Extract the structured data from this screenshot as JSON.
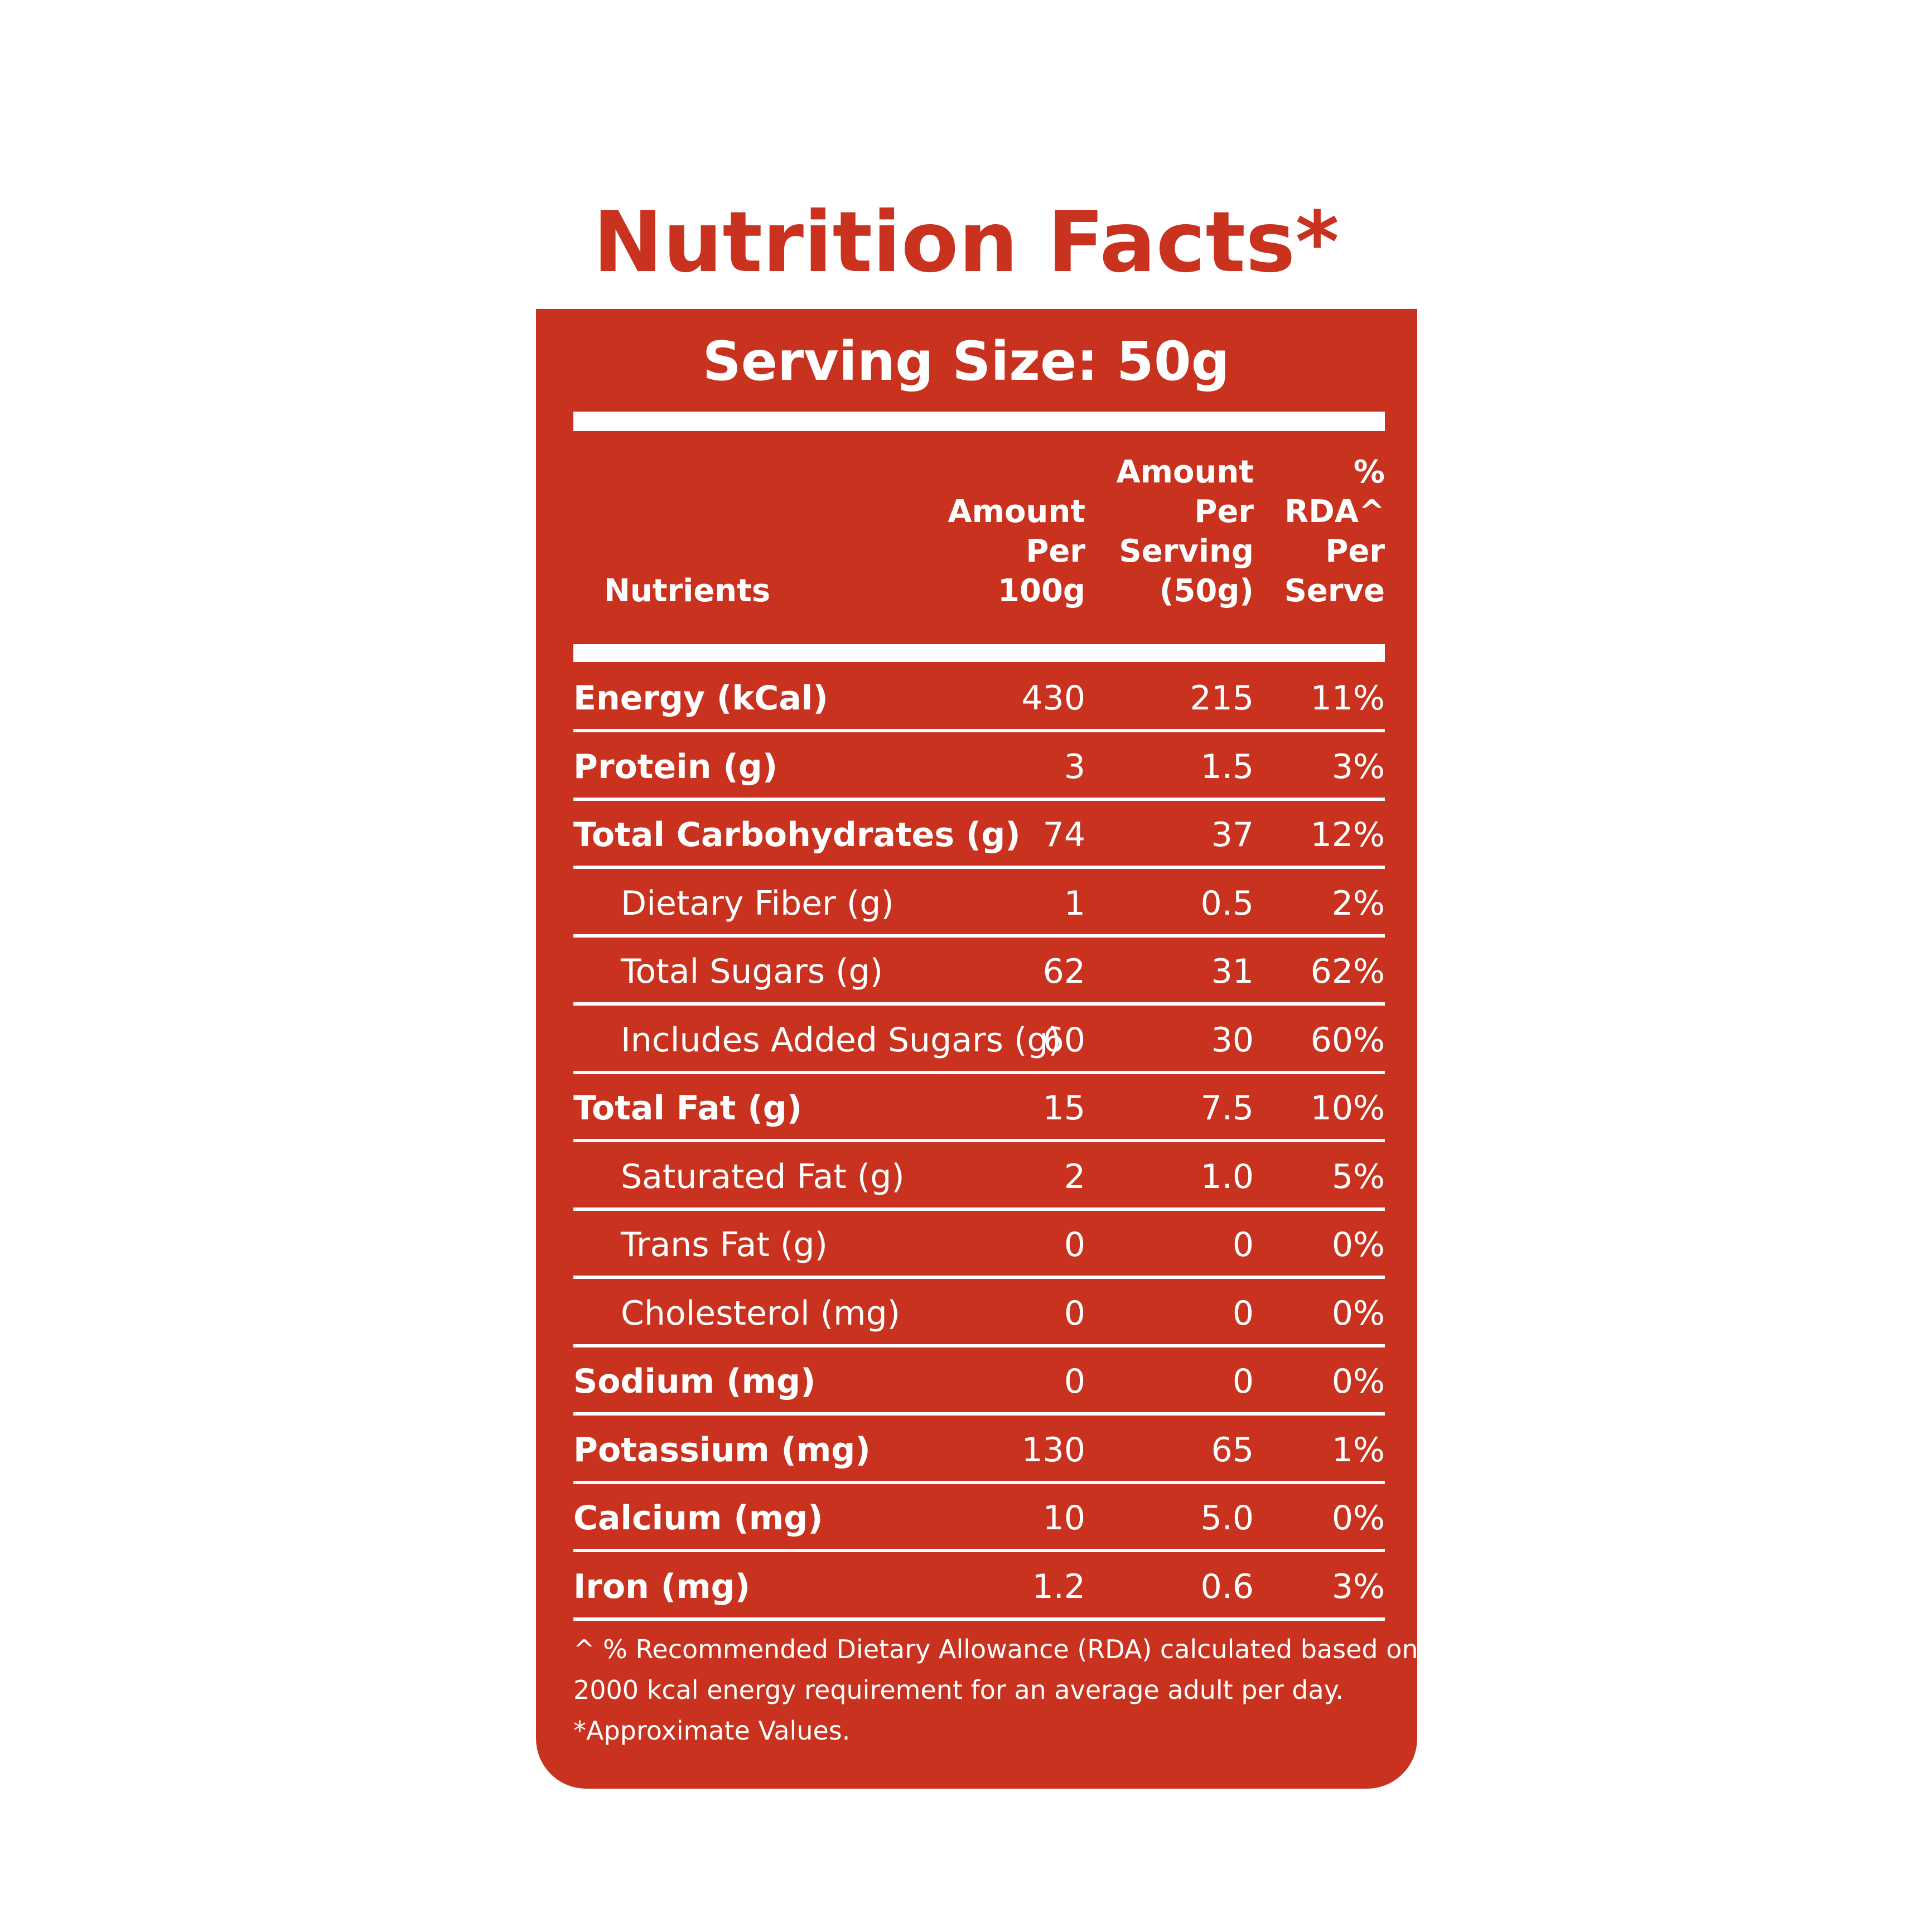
{
  "header": {
    "title": "Nutrition Facts*"
  },
  "table": {
    "serving_size": "Serving Size: 50g",
    "columns": [
      [
        "Nutrients"
      ],
      [
        "Amount",
        "Per",
        "100g"
      ],
      [
        "Amount",
        "Per",
        "Serving",
        "(50g)"
      ],
      [
        "%",
        "RDA^",
        "Per",
        "Serve"
      ]
    ],
    "rows": [
      [
        "Energy (kCal)",
        "430",
        "215",
        "11%"
      ],
      [
        "Protein (g)",
        "3",
        "1.5",
        "3%"
      ],
      [
        "Total Carbohydrates (g)",
        "74",
        "37",
        "12%"
      ],
      [
        "Dietary Fiber (g)",
        "1",
        "0.5",
        "2%"
      ],
      [
        "Total Sugars (g)",
        "62",
        "31",
        "62%"
      ],
      [
        "Includes Added Sugars (g)",
        "60",
        "30",
        "60%"
      ],
      [
        "Total Fat (g)",
        "15",
        "7.5",
        "10%"
      ],
      [
        "Saturated Fat (g)",
        "2",
        "1.0",
        "5%"
      ],
      [
        "Trans Fat (g)",
        "0",
        "0",
        "0%"
      ],
      [
        "Cholesterol (mg)",
        "0",
        "0",
        "0%"
      ],
      [
        "Sodium (mg)",
        "0",
        "0",
        "0%"
      ],
      [
        "Potassium  (mg)",
        "130",
        "65",
        "1%"
      ],
      [
        "Calcium (mg)",
        "10",
        "5.0",
        "0%"
      ],
      [
        "Iron (mg)",
        "1.2",
        "0.6",
        "3%"
      ]
    ]
  },
  "footnote": [
    "^ % Recommended Dietary Allowance (RDA) calculated based on",
    "2000 kcal energy requirement for an average adult per day.",
    "*Approximate Values."
  ]
}
